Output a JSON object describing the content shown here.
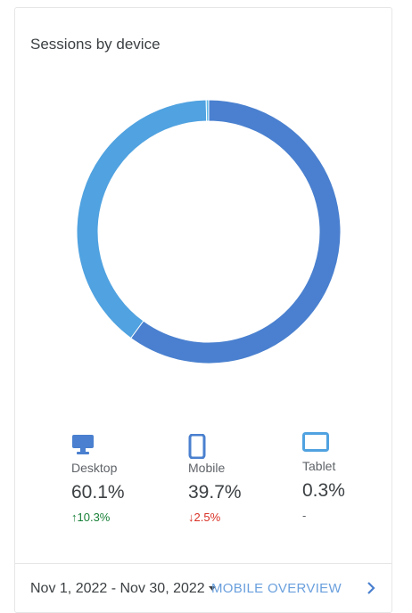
{
  "card": {
    "title": "Sessions by device"
  },
  "colors": {
    "desktop": "#4a80cf",
    "mobile": "#50a2e0",
    "tablet": "#5dbbe9",
    "up": "#188038",
    "down": "#d93025",
    "link": "#6aa0dd"
  },
  "chart_data": {
    "type": "pie",
    "categories": [
      "Desktop",
      "Mobile",
      "Tablet"
    ],
    "values": [
      60.1,
      39.7,
      0.3
    ]
  },
  "devices": [
    {
      "label": "Desktop",
      "value": "60.1%",
      "change": "10.3%",
      "direction": "up",
      "icon": "desktop-icon"
    },
    {
      "label": "Mobile",
      "value": "39.7%",
      "change": "2.5%",
      "direction": "down",
      "icon": "mobile-icon"
    },
    {
      "label": "Tablet",
      "value": "0.3%",
      "change": "-",
      "direction": "none",
      "icon": "tablet-icon"
    }
  ],
  "footer": {
    "date_range": "Nov 1, 2022 - Nov 30, 2022",
    "overview_link": "MOBILE OVERVIEW"
  }
}
